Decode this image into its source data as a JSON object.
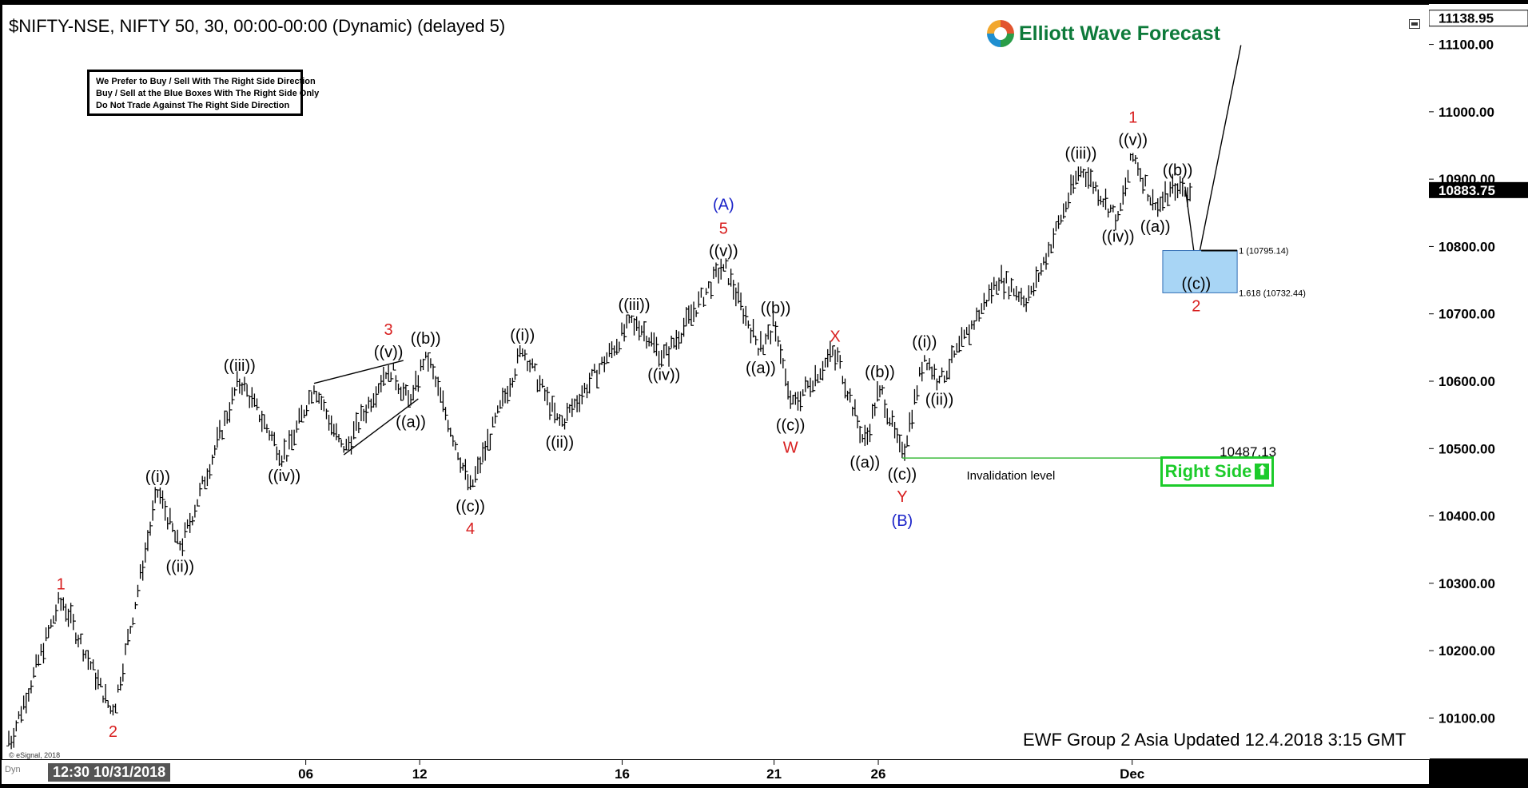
{
  "title": "$NIFTY-NSE, NIFTY 50, 30, 00:00-00:00 (Dynamic) (delayed 5)",
  "brand": "Elliott Wave Forecast",
  "note_lines": [
    "We Prefer to Buy / Sell With The Right Side Direction",
    "Buy / Sell at the Blue Boxes With The Right Side Only",
    "Do Not Trade Against The Right Side Direction"
  ],
  "right_side_label": "Right Side",
  "invalidation_label": "Invalidation level",
  "invalidation_value": "10487.13",
  "update_note": "EWF Group 2 Asia Updated 12.4.2018 3:15 GMT",
  "copyright": "© eSignal, 2018",
  "dyn_label": "Dyn",
  "time_start_label": "12:30 10/31/2018",
  "icons": {
    "logo": "ewf-logo-icon",
    "arrow": "up-arrow-icon",
    "panel": "window-toggle-icon"
  },
  "colors": {
    "wave_red": "#d81e1e",
    "wave_blue": "#1a22c8",
    "box_fill": "#a8d5f5",
    "invalidation_line": "#3dbb3d",
    "right_side": "#1ccb2a"
  },
  "chart_data": {
    "type": "line",
    "subtype": "ohlc-bars-with-elliott-wave-annotations",
    "title": "$NIFTY-NSE, NIFTY 50, 30, 00:00-00:00 (Dynamic) (delayed 5)",
    "y_axis_position": "right",
    "ylim": [
      10040,
      11160
    ],
    "y_ticks": [
      10100,
      10200,
      10300,
      10400,
      10500,
      10600,
      10700,
      10800,
      10900,
      11000,
      11100
    ],
    "y_tick_labels": [
      "10100.00",
      "10200.00",
      "10300.00",
      "10400.00",
      "10500.00",
      "10600.00",
      "10700.00",
      "10800.00",
      "10900.00",
      "11000.00",
      "11100.00"
    ],
    "price_tags": [
      {
        "label": "11138.95",
        "value": 11138.95,
        "style": "plain"
      },
      {
        "label": "10883.75",
        "value": 10883.75,
        "style": "inverted"
      }
    ],
    "x_tick_labels": [
      "06",
      "12",
      "16",
      "21",
      "26",
      "Dec"
    ],
    "x_range_bars": [
      0,
      190
    ],
    "x_tick_bars": [
      40,
      55.3,
      82.5,
      102.9,
      116.9,
      151
    ],
    "pivots": [
      {
        "bar": 0,
        "price": 10060,
        "label": ""
      },
      {
        "bar": 7,
        "price": 10280,
        "label": "1",
        "color": "red",
        "pos": "above"
      },
      {
        "bar": 14,
        "price": 10105,
        "label": "2",
        "color": "red",
        "pos": "below"
      },
      {
        "bar": 20,
        "price": 10440,
        "label": "((i))",
        "color": "black",
        "pos": "above"
      },
      {
        "bar": 23,
        "price": 10350,
        "label": "((ii))",
        "color": "black",
        "pos": "below"
      },
      {
        "bar": 31,
        "price": 10605,
        "label": "((iii))",
        "color": "black",
        "pos": "above"
      },
      {
        "bar": 37,
        "price": 10485,
        "label": "((iv))",
        "color": "black",
        "pos": "below"
      },
      {
        "bar": 41,
        "price": 10595,
        "label": "",
        "color": "black",
        "pos": "above"
      },
      {
        "bar": 45,
        "price": 10495,
        "label": "",
        "color": "black",
        "pos": "below"
      },
      {
        "bar": 51,
        "price": 10625,
        "label": "((v))",
        "color": "black",
        "pos": "above",
        "extra": "3",
        "extra_color": "red"
      },
      {
        "bar": 54,
        "price": 10565,
        "label": "((a))",
        "color": "black",
        "pos": "below"
      },
      {
        "bar": 56,
        "price": 10645,
        "label": "((b))",
        "color": "black",
        "pos": "above"
      },
      {
        "bar": 62,
        "price": 10440,
        "label": "((c))",
        "color": "black",
        "pos": "below",
        "extra": "4",
        "extra_color": "red"
      },
      {
        "bar": 69,
        "price": 10650,
        "label": "((i))",
        "color": "black",
        "pos": "above"
      },
      {
        "bar": 74,
        "price": 10535,
        "label": "((ii))",
        "color": "black",
        "pos": "below"
      },
      {
        "bar": 84,
        "price": 10695,
        "label": "((iii))",
        "color": "black",
        "pos": "above"
      },
      {
        "bar": 88,
        "price": 10635,
        "label": "((iv))",
        "color": "black",
        "pos": "below"
      },
      {
        "bar": 96,
        "price": 10775,
        "label": "((v))",
        "color": "black",
        "pos": "above",
        "extra": "5",
        "extra_color": "red",
        "extra2": "(A)",
        "extra2_color": "blue"
      },
      {
        "bar": 101,
        "price": 10645,
        "label": "((a))",
        "color": "black",
        "pos": "below"
      },
      {
        "bar": 103,
        "price": 10690,
        "label": "((b))",
        "color": "black",
        "pos": "above"
      },
      {
        "bar": 105,
        "price": 10560,
        "label": "((c))",
        "color": "black",
        "pos": "below",
        "extra": "W",
        "extra_color": "red"
      },
      {
        "bar": 111,
        "price": 10648,
        "label": "X",
        "color": "red",
        "pos": "above"
      },
      {
        "bar": 115,
        "price": 10505,
        "label": "((a))",
        "color": "black",
        "pos": "below"
      },
      {
        "bar": 117,
        "price": 10595,
        "label": "((b))",
        "color": "black",
        "pos": "above"
      },
      {
        "bar": 120,
        "price": 10487.13,
        "label": "((c))",
        "color": "black",
        "pos": "below",
        "extra": "Y",
        "extra_color": "red",
        "extra2": "(B)",
        "extra2_color": "blue"
      },
      {
        "bar": 123,
        "price": 10640,
        "label": "((i))",
        "color": "black",
        "pos": "above"
      },
      {
        "bar": 125,
        "price": 10598,
        "label": "((ii))",
        "color": "black",
        "pos": "below"
      },
      {
        "bar": 133,
        "price": 10755,
        "label": "",
        "color": "black",
        "pos": "above"
      },
      {
        "bar": 137,
        "price": 10720,
        "label": "",
        "color": "black",
        "pos": "below"
      },
      {
        "bar": 144,
        "price": 10920,
        "label": "((iii))",
        "color": "black",
        "pos": "above"
      },
      {
        "bar": 149,
        "price": 10840,
        "label": "((iv))",
        "color": "black",
        "pos": "below"
      },
      {
        "bar": 151,
        "price": 10940,
        "label": "((v))",
        "color": "black",
        "pos": "above",
        "extra": "1",
        "extra_color": "red"
      },
      {
        "bar": 154,
        "price": 10855,
        "label": "((a))",
        "color": "black",
        "pos": "below"
      },
      {
        "bar": 157,
        "price": 10895,
        "label": "((b))",
        "color": "black",
        "pos": "above"
      },
      {
        "bar": 159,
        "price": 10875,
        "label": "",
        "color": "black",
        "pos": "above"
      }
    ],
    "wedge_lines": [
      {
        "from": {
          "bar": 41,
          "price": 10598
        },
        "to": {
          "bar": 53,
          "price": 10632
        }
      },
      {
        "from": {
          "bar": 45,
          "price": 10492
        },
        "to": {
          "bar": 55,
          "price": 10575
        }
      }
    ],
    "projection": [
      {
        "bar": 158,
        "price": 10890
      },
      {
        "bar": 159.5,
        "price": 10768,
        "label": "((c))",
        "extra": "2",
        "extra_color": "red"
      },
      {
        "bar": 165.5,
        "price": 11100
      }
    ],
    "blue_box": {
      "price_top": 10795.14,
      "price_bottom": 10732.44,
      "bar_from": 155,
      "bar_to": 165,
      "labels": [
        "1 (10795.14)",
        "1.618 (10732.44)"
      ]
    },
    "invalidation": {
      "price": 10487.13,
      "bar_from": 120,
      "bar_to": 162
    }
  }
}
